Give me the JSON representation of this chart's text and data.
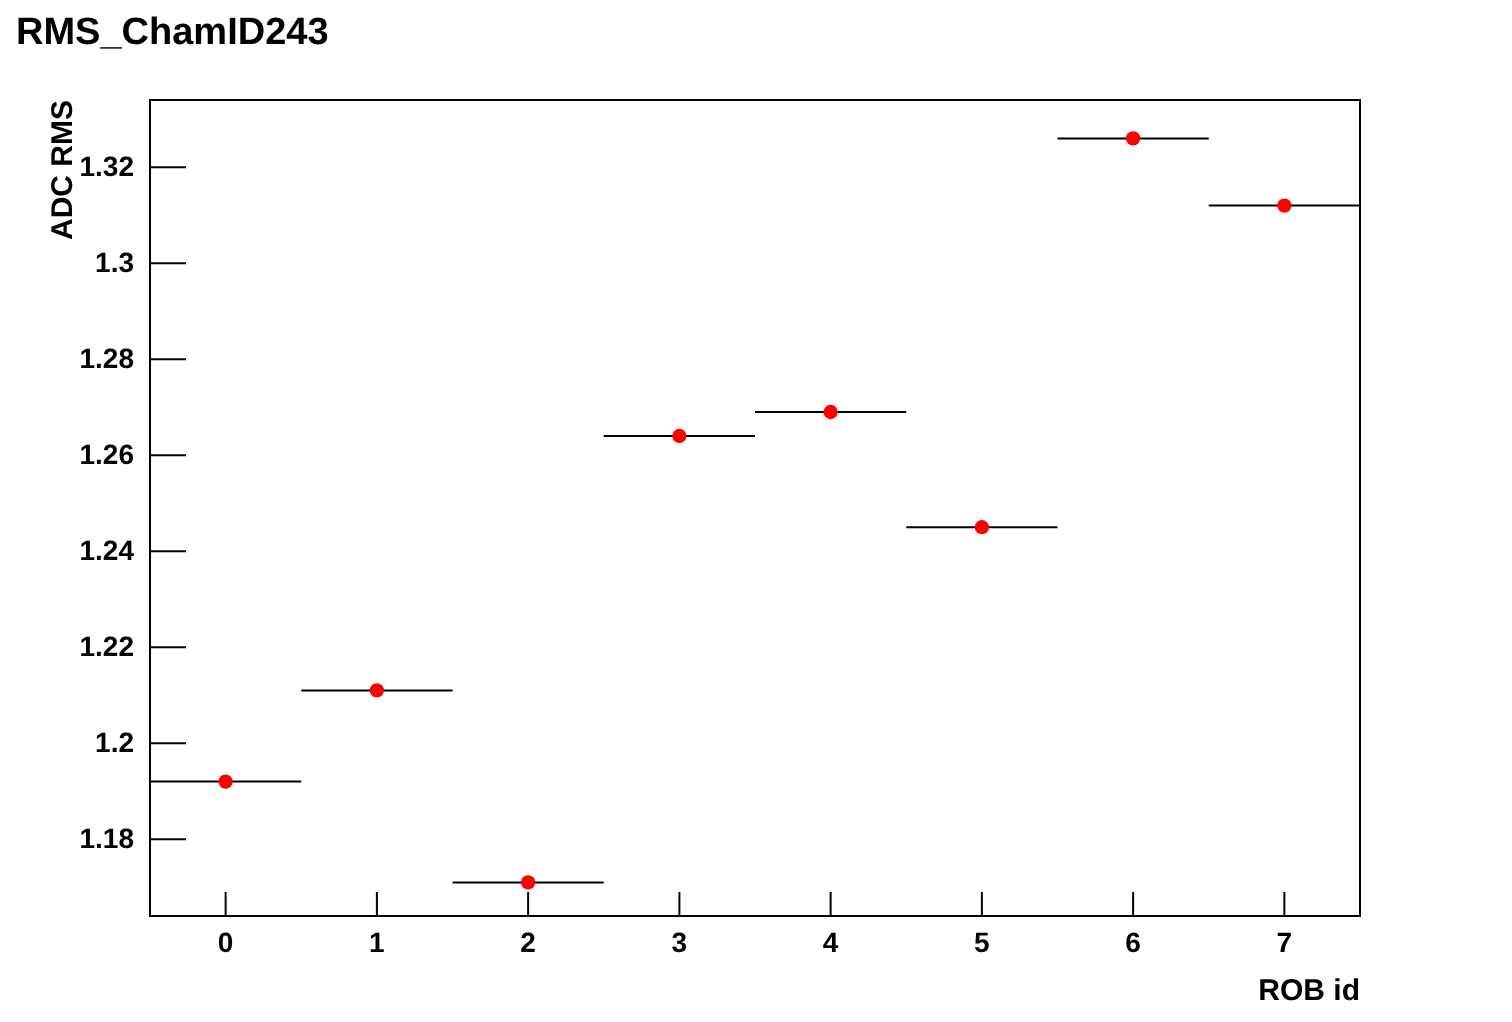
{
  "chart_data": {
    "type": "scatter",
    "title": "RMS_ChamID243",
    "xlabel": "ROB id",
    "ylabel": "ADC RMS",
    "x": [
      0,
      1,
      2,
      3,
      4,
      5,
      6,
      7
    ],
    "series": [
      {
        "color": "#ff0000",
        "values": [
          1.192,
          1.211,
          1.171,
          1.264,
          1.269,
          1.245,
          1.326,
          1.312
        ],
        "xerrors": [
          0.5,
          0.5,
          0.5,
          0.5,
          0.5,
          0.5,
          0.5,
          0.5
        ]
      }
    ],
    "xlim": [
      -0.5,
      7.5
    ],
    "xticks": [
      0,
      1,
      2,
      3,
      4,
      5,
      6,
      7
    ],
    "ylim": [
      1.164,
      1.334
    ],
    "yticks": [
      1.18,
      1.2,
      1.22,
      1.24,
      1.26,
      1.28,
      1.3,
      1.32
    ],
    "marker": "circle",
    "grid": false
  }
}
